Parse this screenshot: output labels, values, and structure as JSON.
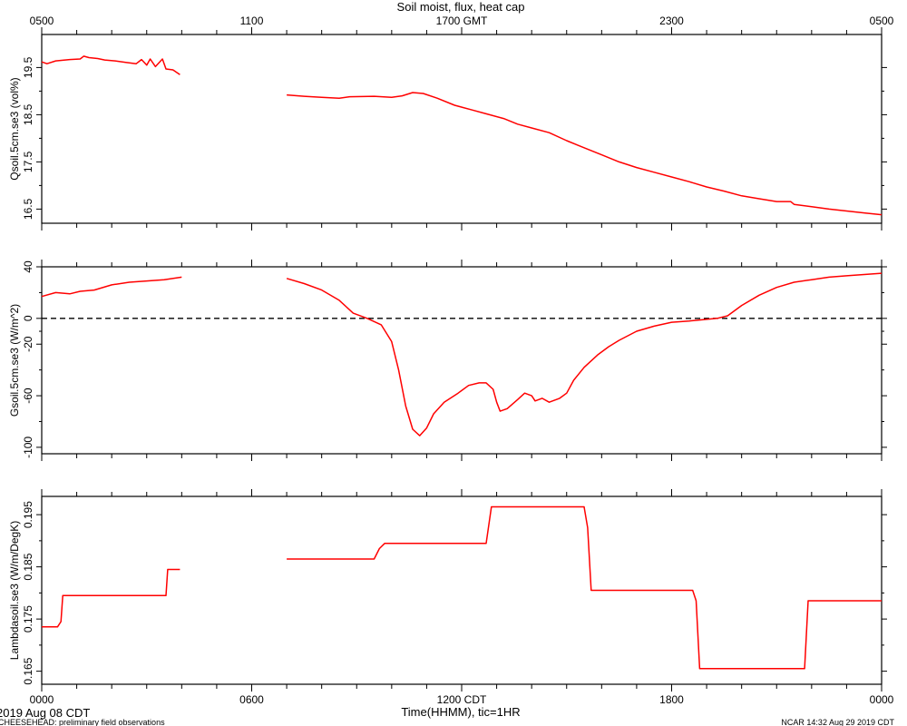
{
  "title": "Soil moist, flux, heat cap",
  "top_axis_ticks": [
    "0500",
    "1100",
    "1700 GMT",
    "2300",
    "0500"
  ],
  "bottom_axis_ticks": [
    "0000",
    "0600",
    "1200 CDT",
    "1800",
    "0000"
  ],
  "xlabel": "Time(HHMM), tic=1HR",
  "date_label": "2019 Aug 08 CDT",
  "footer_left": "CHEESEHEAD: preliminary field observations",
  "footer_right": "NCAR 14:32 Aug 29 2019 CDT",
  "colors": {
    "series": "#ff0000",
    "axes": "#000000"
  },
  "chart_data": [
    {
      "type": "line",
      "ylabel": "Qsoil.5cm.se3 (vol%)",
      "ylim": [
        16.2,
        20.2
      ],
      "yticks": [
        "16.5",
        "17.5",
        "18.5",
        "19.5"
      ],
      "zero_line": false,
      "xlim_hours": [
        0,
        24
      ],
      "segments": [
        [
          [
            0,
            19.62
          ],
          [
            0.15,
            19.58
          ],
          [
            0.4,
            19.64
          ],
          [
            0.8,
            19.67
          ],
          [
            1.1,
            19.68
          ],
          [
            1.2,
            19.74
          ],
          [
            1.35,
            19.71
          ],
          [
            1.6,
            19.69
          ],
          [
            1.8,
            19.66
          ],
          [
            2.1,
            19.64
          ],
          [
            2.4,
            19.61
          ],
          [
            2.7,
            19.58
          ],
          [
            2.85,
            19.67
          ],
          [
            3.0,
            19.55
          ],
          [
            3.1,
            19.68
          ],
          [
            3.25,
            19.52
          ],
          [
            3.45,
            19.68
          ],
          [
            3.55,
            19.47
          ],
          [
            3.75,
            19.45
          ],
          [
            3.95,
            19.35
          ]
        ],
        [
          [
            7.0,
            18.92
          ],
          [
            7.5,
            18.89
          ],
          [
            8.0,
            18.87
          ],
          [
            8.5,
            18.85
          ],
          [
            8.8,
            18.88
          ],
          [
            9.5,
            18.89
          ],
          [
            10.0,
            18.87
          ],
          [
            10.3,
            18.9
          ],
          [
            10.6,
            18.97
          ],
          [
            10.9,
            18.95
          ],
          [
            11.3,
            18.85
          ],
          [
            11.8,
            18.7
          ],
          [
            12.3,
            18.6
          ],
          [
            12.7,
            18.52
          ],
          [
            13.2,
            18.42
          ],
          [
            13.6,
            18.3
          ],
          [
            14.0,
            18.22
          ],
          [
            14.5,
            18.12
          ],
          [
            15.0,
            17.95
          ],
          [
            15.5,
            17.8
          ],
          [
            16.0,
            17.65
          ],
          [
            16.5,
            17.5
          ],
          [
            17.0,
            17.38
          ],
          [
            17.5,
            17.28
          ],
          [
            18.0,
            17.18
          ],
          [
            18.5,
            17.08
          ],
          [
            19.0,
            16.97
          ],
          [
            19.5,
            16.88
          ],
          [
            20.0,
            16.78
          ],
          [
            20.5,
            16.72
          ],
          [
            21.0,
            16.66
          ],
          [
            21.4,
            16.66
          ],
          [
            21.5,
            16.6
          ],
          [
            22.0,
            16.55
          ],
          [
            22.5,
            16.5
          ],
          [
            23.0,
            16.46
          ],
          [
            23.5,
            16.42
          ],
          [
            24.0,
            16.38
          ]
        ]
      ]
    },
    {
      "type": "line",
      "ylabel": "Gsoil.5cm.se3 (W/m^2)",
      "ylim": [
        -105,
        40
      ],
      "yticks": [
        "40",
        "0",
        "-20",
        "-60",
        "-100"
      ],
      "zero_line": true,
      "xlim_hours": [
        0,
        24
      ],
      "segments": [
        [
          [
            0,
            17
          ],
          [
            0.4,
            20
          ],
          [
            0.8,
            19
          ],
          [
            1.1,
            21
          ],
          [
            1.5,
            22
          ],
          [
            2.0,
            26
          ],
          [
            2.5,
            28
          ],
          [
            3.0,
            29
          ],
          [
            3.5,
            30
          ],
          [
            4.0,
            32
          ]
        ],
        [
          [
            7.0,
            31
          ],
          [
            7.5,
            27
          ],
          [
            8.0,
            22
          ],
          [
            8.5,
            14
          ],
          [
            8.9,
            4
          ],
          [
            9.3,
            0
          ],
          [
            9.7,
            -5
          ],
          [
            10.0,
            -18
          ],
          [
            10.2,
            -40
          ],
          [
            10.4,
            -68
          ],
          [
            10.6,
            -86
          ],
          [
            10.8,
            -91
          ],
          [
            11.0,
            -85
          ],
          [
            11.2,
            -74
          ],
          [
            11.5,
            -65
          ],
          [
            11.9,
            -58
          ],
          [
            12.2,
            -52
          ],
          [
            12.5,
            -50
          ],
          [
            12.7,
            -50
          ],
          [
            12.9,
            -55
          ],
          [
            13.0,
            -65
          ],
          [
            13.1,
            -72
          ],
          [
            13.3,
            -70
          ],
          [
            13.6,
            -63
          ],
          [
            13.8,
            -58
          ],
          [
            14.0,
            -60
          ],
          [
            14.1,
            -64
          ],
          [
            14.3,
            -62
          ],
          [
            14.5,
            -65
          ],
          [
            14.8,
            -62
          ],
          [
            15.0,
            -58
          ],
          [
            15.2,
            -48
          ],
          [
            15.5,
            -38
          ],
          [
            15.9,
            -28
          ],
          [
            16.2,
            -22
          ],
          [
            16.5,
            -17
          ],
          [
            17.0,
            -10
          ],
          [
            17.5,
            -6
          ],
          [
            18.0,
            -3
          ],
          [
            18.5,
            -2
          ],
          [
            18.9,
            -1
          ],
          [
            19.3,
            0
          ],
          [
            19.6,
            2
          ],
          [
            20.0,
            10
          ],
          [
            20.5,
            18
          ],
          [
            21.0,
            24
          ],
          [
            21.5,
            28
          ],
          [
            22.0,
            30
          ],
          [
            22.5,
            32
          ],
          [
            23.0,
            33
          ],
          [
            23.5,
            34
          ],
          [
            24.0,
            35
          ]
        ]
      ]
    },
    {
      "type": "line",
      "ylabel": "Lambdasoil.se3 (W/m/DegK)",
      "ylim": [
        0.1625,
        0.1985
      ],
      "yticks": [
        "0.165",
        "0.175",
        "0.185",
        "0.195"
      ],
      "zero_line": false,
      "xlim_hours": [
        0,
        24
      ],
      "segments": [
        [
          [
            0,
            0.1735
          ],
          [
            0.45,
            0.1735
          ],
          [
            0.55,
            0.1745
          ],
          [
            0.6,
            0.1795
          ],
          [
            3.55,
            0.1795
          ],
          [
            3.6,
            0.1845
          ],
          [
            3.95,
            0.1845
          ]
        ],
        [
          [
            7.0,
            0.1865
          ],
          [
            9.5,
            0.1865
          ],
          [
            9.65,
            0.1885
          ],
          [
            9.8,
            0.1895
          ],
          [
            12.7,
            0.1895
          ],
          [
            12.85,
            0.1965
          ],
          [
            15.5,
            0.1965
          ],
          [
            15.6,
            0.1925
          ],
          [
            15.7,
            0.1805
          ],
          [
            18.6,
            0.1805
          ],
          [
            18.7,
            0.1785
          ],
          [
            18.8,
            0.1655
          ],
          [
            21.8,
            0.1655
          ],
          [
            21.9,
            0.1785
          ],
          [
            24.0,
            0.1785
          ]
        ]
      ]
    }
  ]
}
